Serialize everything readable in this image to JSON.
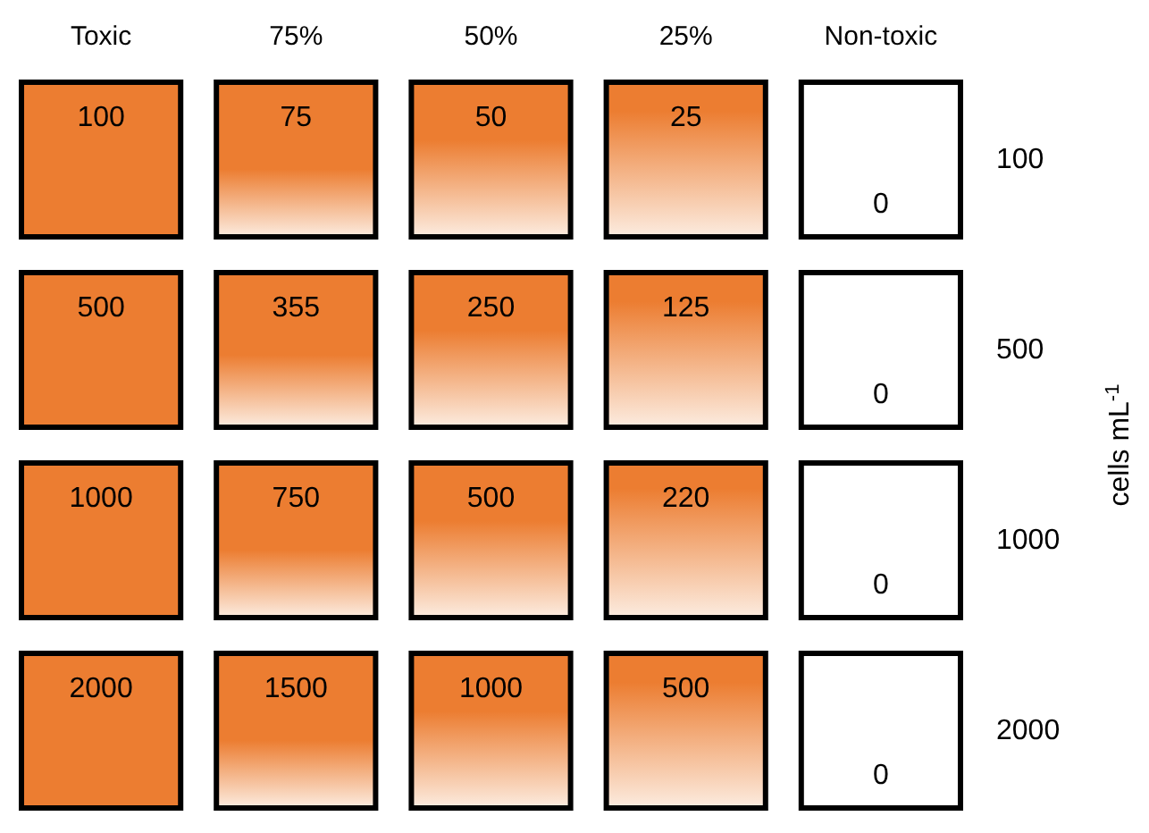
{
  "chart_data": {
    "type": "heatmap",
    "ylabel": "cells mL$^{-1}$",
    "color": "#ec7d31",
    "categories": [
      "Toxic",
      "75%",
      "50%",
      "25%",
      "Non-toxic"
    ],
    "y_categories": [
      "100",
      "500",
      "1000",
      "2000"
    ],
    "cells": [
      [
        100,
        75,
        50,
        25,
        0
      ],
      [
        500,
        355,
        250,
        125,
        0
      ],
      [
        1000,
        750,
        500,
        220,
        0
      ],
      [
        2000,
        1500,
        1000,
        500,
        0
      ]
    ],
    "data_labels": true
  }
}
